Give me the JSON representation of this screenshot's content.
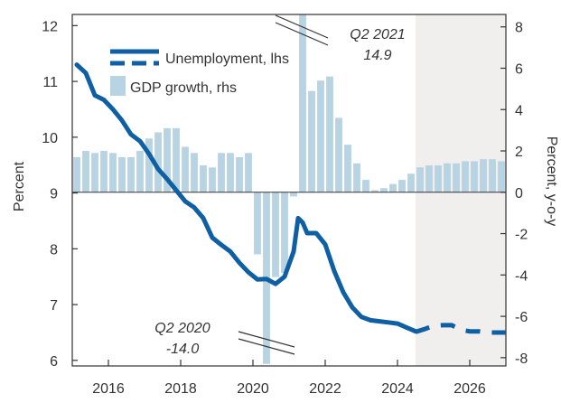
{
  "chart_data": {
    "type": "bar+line",
    "left_axis": {
      "label": "Percent",
      "ylim": [
        5.9,
        12.2
      ],
      "ticks": [
        6,
        7,
        8,
        9,
        10,
        11,
        12
      ]
    },
    "right_axis": {
      "label": "Percent, y-o-y",
      "ylim": [
        -8.4,
        8.6
      ],
      "ticks": [
        -8,
        -6,
        -4,
        -2,
        0,
        2,
        4,
        6,
        8
      ]
    },
    "x_axis": {
      "xlim": [
        2015.0,
        2027.0
      ],
      "ticks": [
        2016,
        2018,
        2020,
        2022,
        2024,
        2026
      ]
    },
    "projection_start": 2024.5,
    "colors": {
      "line": "#0e5fa3",
      "bars": "#b8d3e2",
      "projection": "#f1efed",
      "axis": "#333333"
    },
    "series": [
      {
        "name": "Unemployment, lhs",
        "type": "line",
        "axis": "left",
        "actual": [
          [
            2015.125,
            11.3
          ],
          [
            2015.375,
            11.15
          ],
          [
            2015.625,
            10.75
          ],
          [
            2015.875,
            10.67
          ],
          [
            2016.125,
            10.5
          ],
          [
            2016.375,
            10.3
          ],
          [
            2016.625,
            10.05
          ],
          [
            2016.875,
            9.93
          ],
          [
            2017.125,
            9.7
          ],
          [
            2017.375,
            9.43
          ],
          [
            2017.625,
            9.25
          ],
          [
            2017.875,
            9.05
          ],
          [
            2018.125,
            8.85
          ],
          [
            2018.375,
            8.74
          ],
          [
            2018.625,
            8.55
          ],
          [
            2018.875,
            8.2
          ],
          [
            2019.125,
            8.07
          ],
          [
            2019.375,
            7.95
          ],
          [
            2019.625,
            7.75
          ],
          [
            2019.875,
            7.58
          ],
          [
            2020.125,
            7.45
          ],
          [
            2020.375,
            7.46
          ],
          [
            2020.625,
            7.37
          ],
          [
            2020.875,
            7.5
          ],
          [
            2021.125,
            7.95
          ],
          [
            2021.25,
            8.55
          ],
          [
            2021.375,
            8.47
          ],
          [
            2021.5,
            8.28
          ],
          [
            2021.75,
            8.28
          ],
          [
            2022.0,
            8.08
          ],
          [
            2022.25,
            7.6
          ],
          [
            2022.5,
            7.22
          ],
          [
            2022.75,
            6.95
          ],
          [
            2023.0,
            6.78
          ],
          [
            2023.25,
            6.72
          ],
          [
            2023.5,
            6.7
          ],
          [
            2023.75,
            6.68
          ],
          [
            2024.0,
            6.66
          ],
          [
            2024.25,
            6.59
          ],
          [
            2024.5,
            6.52
          ],
          [
            2024.75,
            6.54
          ],
          [
            2025.0,
            6.52
          ],
          [
            2025.25,
            6.5
          ],
          [
            2025.5,
            6.5
          ]
        ],
        "projection": [
          [
            2024.5,
            6.51
          ],
          [
            2024.75,
            6.56
          ],
          [
            2025.0,
            6.62
          ],
          [
            2025.25,
            6.63
          ],
          [
            2025.5,
            6.63
          ],
          [
            2025.75,
            6.55
          ],
          [
            2026.0,
            6.52
          ],
          [
            2026.25,
            6.52
          ],
          [
            2026.5,
            6.5
          ],
          [
            2026.75,
            6.5
          ],
          [
            2027.0,
            6.5
          ]
        ]
      },
      {
        "name": "GDP growth, rhs",
        "type": "bar",
        "axis": "right",
        "x": [
          2015.125,
          2015.375,
          2015.625,
          2015.875,
          2016.125,
          2016.375,
          2016.625,
          2016.875,
          2017.125,
          2017.375,
          2017.625,
          2017.875,
          2018.125,
          2018.375,
          2018.625,
          2018.875,
          2019.125,
          2019.375,
          2019.625,
          2019.875,
          2020.125,
          2020.375,
          2020.625,
          2020.875,
          2021.125,
          2021.375,
          2021.625,
          2021.875,
          2022.125,
          2022.375,
          2022.625,
          2022.875,
          2023.125,
          2023.375,
          2023.625,
          2023.875,
          2024.125,
          2024.375,
          2024.625,
          2024.875,
          2025.125,
          2025.375,
          2025.625,
          2025.875,
          2026.125,
          2026.375,
          2026.625,
          2026.875
        ],
        "values": [
          1.7,
          2.0,
          1.9,
          2.0,
          1.9,
          1.7,
          1.7,
          2.0,
          2.6,
          2.9,
          3.1,
          3.1,
          2.2,
          1.9,
          1.3,
          1.2,
          1.9,
          1.9,
          1.7,
          1.9,
          -3.0,
          -8.3,
          -4.1,
          -3.9,
          -0.2,
          8.6,
          4.9,
          5.4,
          5.6,
          3.6,
          2.3,
          1.4,
          0.6,
          0.1,
          0.2,
          0.4,
          0.6,
          0.9,
          1.2,
          1.3,
          1.3,
          1.4,
          1.4,
          1.5,
          1.5,
          1.6,
          1.6,
          1.5
        ]
      }
    ],
    "annotations": [
      {
        "lines": [
          "Q2 2021",
          "14.9"
        ]
      },
      {
        "lines": [
          "Q2 2020",
          "-14.0"
        ]
      }
    ],
    "legend": {
      "placement": "top-left"
    }
  }
}
